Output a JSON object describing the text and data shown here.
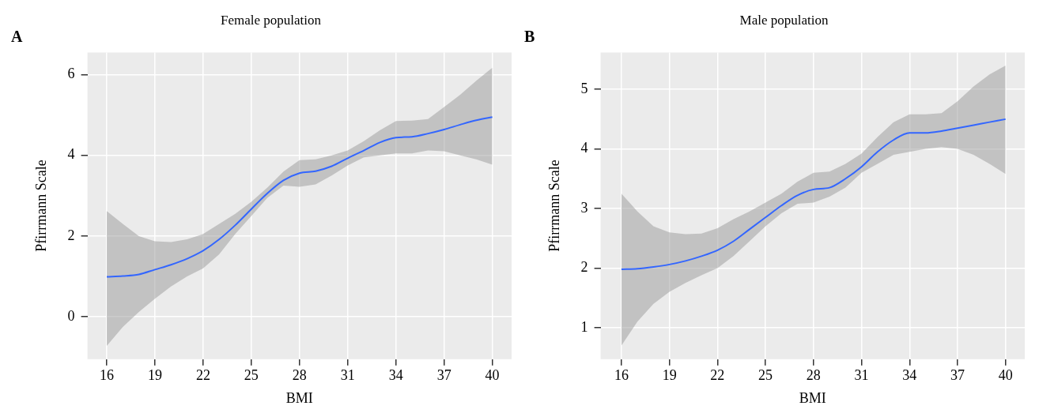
{
  "chart_data": [
    {
      "type": "line",
      "title": "Female population",
      "xlabel": "BMI",
      "ylabel": "Pfirrmann Scale",
      "annotations": [
        "A"
      ],
      "x": [
        16,
        17,
        18,
        19,
        20,
        21,
        22,
        23,
        24,
        25,
        26,
        27,
        28,
        29,
        30,
        31,
        32,
        33,
        34,
        35,
        36,
        37,
        38,
        39,
        40
      ],
      "series": [
        {
          "color": "#3366ff",
          "values": [
            0.99,
            1.01,
            1.05,
            1.17,
            1.29,
            1.44,
            1.64,
            1.92,
            2.27,
            2.67,
            3.06,
            3.38,
            3.56,
            3.61,
            3.73,
            3.93,
            4.12,
            4.32,
            4.44,
            4.46,
            4.54,
            4.64,
            4.76,
            4.87,
            4.95
          ],
          "lower": [
            -0.72,
            -0.25,
            0.12,
            0.45,
            0.75,
            1.0,
            1.2,
            1.55,
            2.05,
            2.5,
            2.95,
            3.25,
            3.22,
            3.28,
            3.5,
            3.75,
            3.95,
            4.0,
            4.05,
            4.05,
            4.12,
            4.1,
            4.0,
            3.9,
            3.77
          ],
          "upper": [
            2.62,
            2.3,
            2.0,
            1.87,
            1.85,
            1.92,
            2.05,
            2.3,
            2.55,
            2.85,
            3.2,
            3.6,
            3.88,
            3.9,
            4.0,
            4.12,
            4.35,
            4.62,
            4.85,
            4.86,
            4.9,
            5.2,
            5.5,
            5.85,
            6.17
          ]
        }
      ],
      "xlim": [
        14.8,
        41.2
      ],
      "xticks": [
        16,
        19,
        22,
        25,
        28,
        31,
        34,
        37,
        40
      ],
      "ylim": [
        -1.05,
        6.55
      ],
      "yticks": [
        0,
        2,
        4,
        6
      ],
      "grid": true,
      "legend": false
    },
    {
      "type": "line",
      "title": "Male population",
      "xlabel": "BMI",
      "ylabel": "Pfirrmann Scale",
      "annotations": [
        "B"
      ],
      "x": [
        16,
        17,
        18,
        19,
        20,
        21,
        22,
        23,
        24,
        25,
        26,
        27,
        28,
        29,
        30,
        31,
        32,
        33,
        34,
        35,
        36,
        37,
        38,
        39,
        40
      ],
      "series": [
        {
          "color": "#3366ff",
          "values": [
            1.98,
            1.99,
            2.02,
            2.06,
            2.12,
            2.2,
            2.3,
            2.45,
            2.65,
            2.85,
            3.05,
            3.22,
            3.32,
            3.35,
            3.5,
            3.7,
            3.95,
            4.15,
            4.27,
            4.27,
            4.3,
            4.35,
            4.4,
            4.45,
            4.5
          ],
          "lower": [
            0.7,
            1.1,
            1.4,
            1.6,
            1.75,
            1.88,
            2.0,
            2.2,
            2.45,
            2.7,
            2.92,
            3.08,
            3.1,
            3.2,
            3.35,
            3.6,
            3.75,
            3.9,
            3.95,
            4.0,
            4.03,
            4.0,
            3.9,
            3.75,
            3.58
          ],
          "upper": [
            3.25,
            2.95,
            2.7,
            2.6,
            2.57,
            2.58,
            2.67,
            2.82,
            2.95,
            3.1,
            3.25,
            3.45,
            3.6,
            3.62,
            3.75,
            3.92,
            4.2,
            4.45,
            4.58,
            4.58,
            4.6,
            4.8,
            5.05,
            5.25,
            5.4
          ]
        }
      ],
      "xlim": [
        14.7,
        41.2
      ],
      "xticks": [
        16,
        19,
        22,
        25,
        28,
        31,
        34,
        37,
        40
      ],
      "ylim": [
        0.47,
        5.62
      ],
      "yticks": [
        1,
        2,
        3,
        4,
        5
      ],
      "grid": true,
      "legend": false
    }
  ]
}
